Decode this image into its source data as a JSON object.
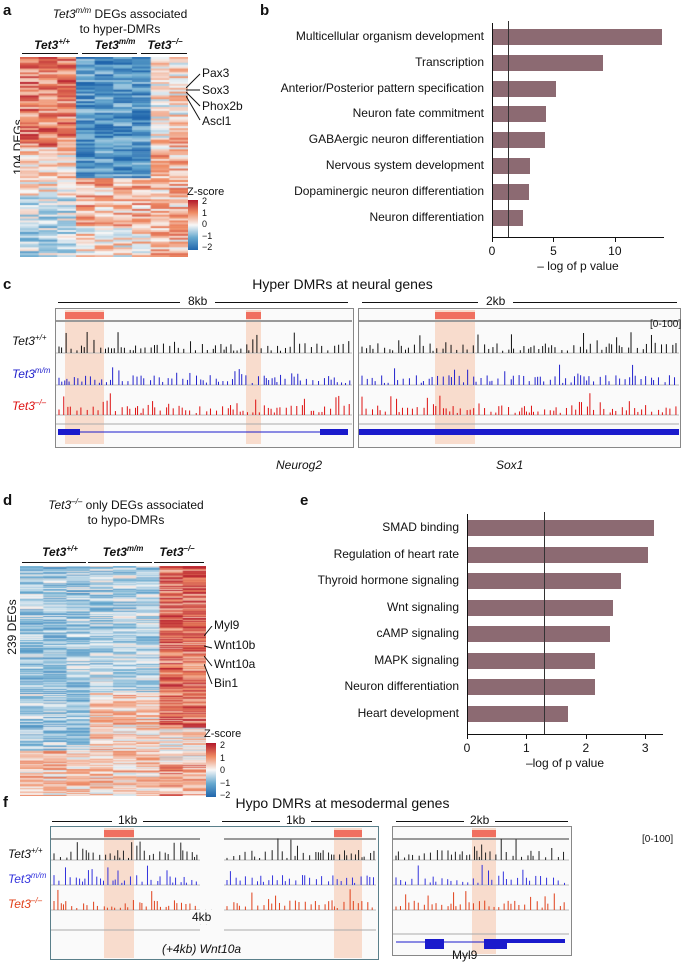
{
  "panels": {
    "a": "a",
    "b": "b",
    "c": "c",
    "d": "d",
    "e": "e",
    "f": "f"
  },
  "a": {
    "title_gene": "Tet3",
    "title_sup": "m/m",
    "title_rest": " DEGs associated",
    "title_line2": "to hyper-DMRs",
    "col_wt": "Tet3",
    "col_wt_sup": "+/+",
    "col_mm": "Tet3",
    "col_mm_sup": "m/m",
    "col_ko": "Tet3",
    "col_ko_sup": "–/–",
    "ylabel": "104 DEGs",
    "genes": [
      "Pax3",
      "Sox3",
      "Phox2b",
      "Ascl1"
    ],
    "zscore_title": "Z-score",
    "zscore_ticks": [
      "2",
      "1",
      "0",
      "−1",
      "−2"
    ]
  },
  "b": {
    "chart_data": {
      "type": "bar",
      "orientation": "horizontal",
      "categories": [
        "Multicellular organism development",
        "Transcription",
        "Anterior/Posterior pattern specification",
        "Neuron fate commitment",
        "GABAergic neuron differentiation",
        "Nervous system development",
        "Dopaminergic neuron differentiation",
        "Neuron differentiation"
      ],
      "values": [
        13.8,
        9.0,
        5.2,
        4.4,
        4.3,
        3.1,
        3.0,
        2.5
      ],
      "threshold": 1.3,
      "xlim": [
        0,
        14
      ],
      "xticks": [
        "0",
        "5",
        "10"
      ],
      "xlabel": "– log of p value",
      "color": "#8c6a72"
    }
  },
  "c": {
    "title": "Hyper DMRs at neural genes",
    "scale_left": "8kb",
    "scale_right": "2kb",
    "range": "[0-100]",
    "tracks": [
      {
        "gene": "Tet3",
        "sup": "+/+",
        "color": "#111111"
      },
      {
        "gene": "Tet3",
        "sup": "m/m",
        "color": "#2222cc"
      },
      {
        "gene": "Tet3",
        "sup": "–/–",
        "color": "#dd1111"
      }
    ],
    "gene_left": "Neurog2",
    "gene_right": "Sox1"
  },
  "d": {
    "title_gene": "Tet3",
    "title_sup": "–/–",
    "title_rest": " only DEGs associated",
    "title_line2": "to hypo-DMRs",
    "col_wt": "Tet3",
    "col_wt_sup": "+/+",
    "col_mm": "Tet3",
    "col_mm_sup": "m/m",
    "col_ko": "Tet3",
    "col_ko_sup": "–/–",
    "ylabel": "239 DEGs",
    "genes": [
      "Myl9",
      "Wnt10b",
      "Wnt10a",
      "Bin1"
    ],
    "zscore_title": "Z-score",
    "zscore_ticks": [
      "2",
      "1",
      "0",
      "−1",
      "−2"
    ]
  },
  "e": {
    "chart_data": {
      "type": "bar",
      "orientation": "horizontal",
      "categories": [
        "SMAD binding",
        "Regulation of heart rate",
        "Thyroid hormone signaling",
        "Wnt signaling",
        "cAMP signaling",
        "MAPK signaling",
        "Neuron differentiation",
        "Heart development"
      ],
      "values": [
        3.15,
        3.05,
        2.6,
        2.45,
        2.4,
        2.15,
        2.15,
        1.7
      ],
      "threshold": 1.3,
      "xlim": [
        0,
        3.3
      ],
      "xticks": [
        "0",
        "1",
        "2",
        "3"
      ],
      "xlabel": "–log of p value",
      "color": "#8c6a72"
    }
  },
  "f": {
    "title": "Hypo DMRs at mesodermal genes",
    "scale_1": "1kb",
    "scale_2": "1kb",
    "scale_3": "2kb",
    "range": "[0-100]",
    "gap_label": "4kb",
    "tracks": [
      {
        "gene": "Tet3",
        "sup": "+/+",
        "color": "#111111"
      },
      {
        "gene": "Tet3",
        "sup": "m/m",
        "color": "#3333dd"
      },
      {
        "gene": "Tet3",
        "sup": "–/–",
        "color": "#e0401a"
      }
    ],
    "gene_left": "(+4kb) Wnt10a",
    "gene_right": "Myl9"
  }
}
